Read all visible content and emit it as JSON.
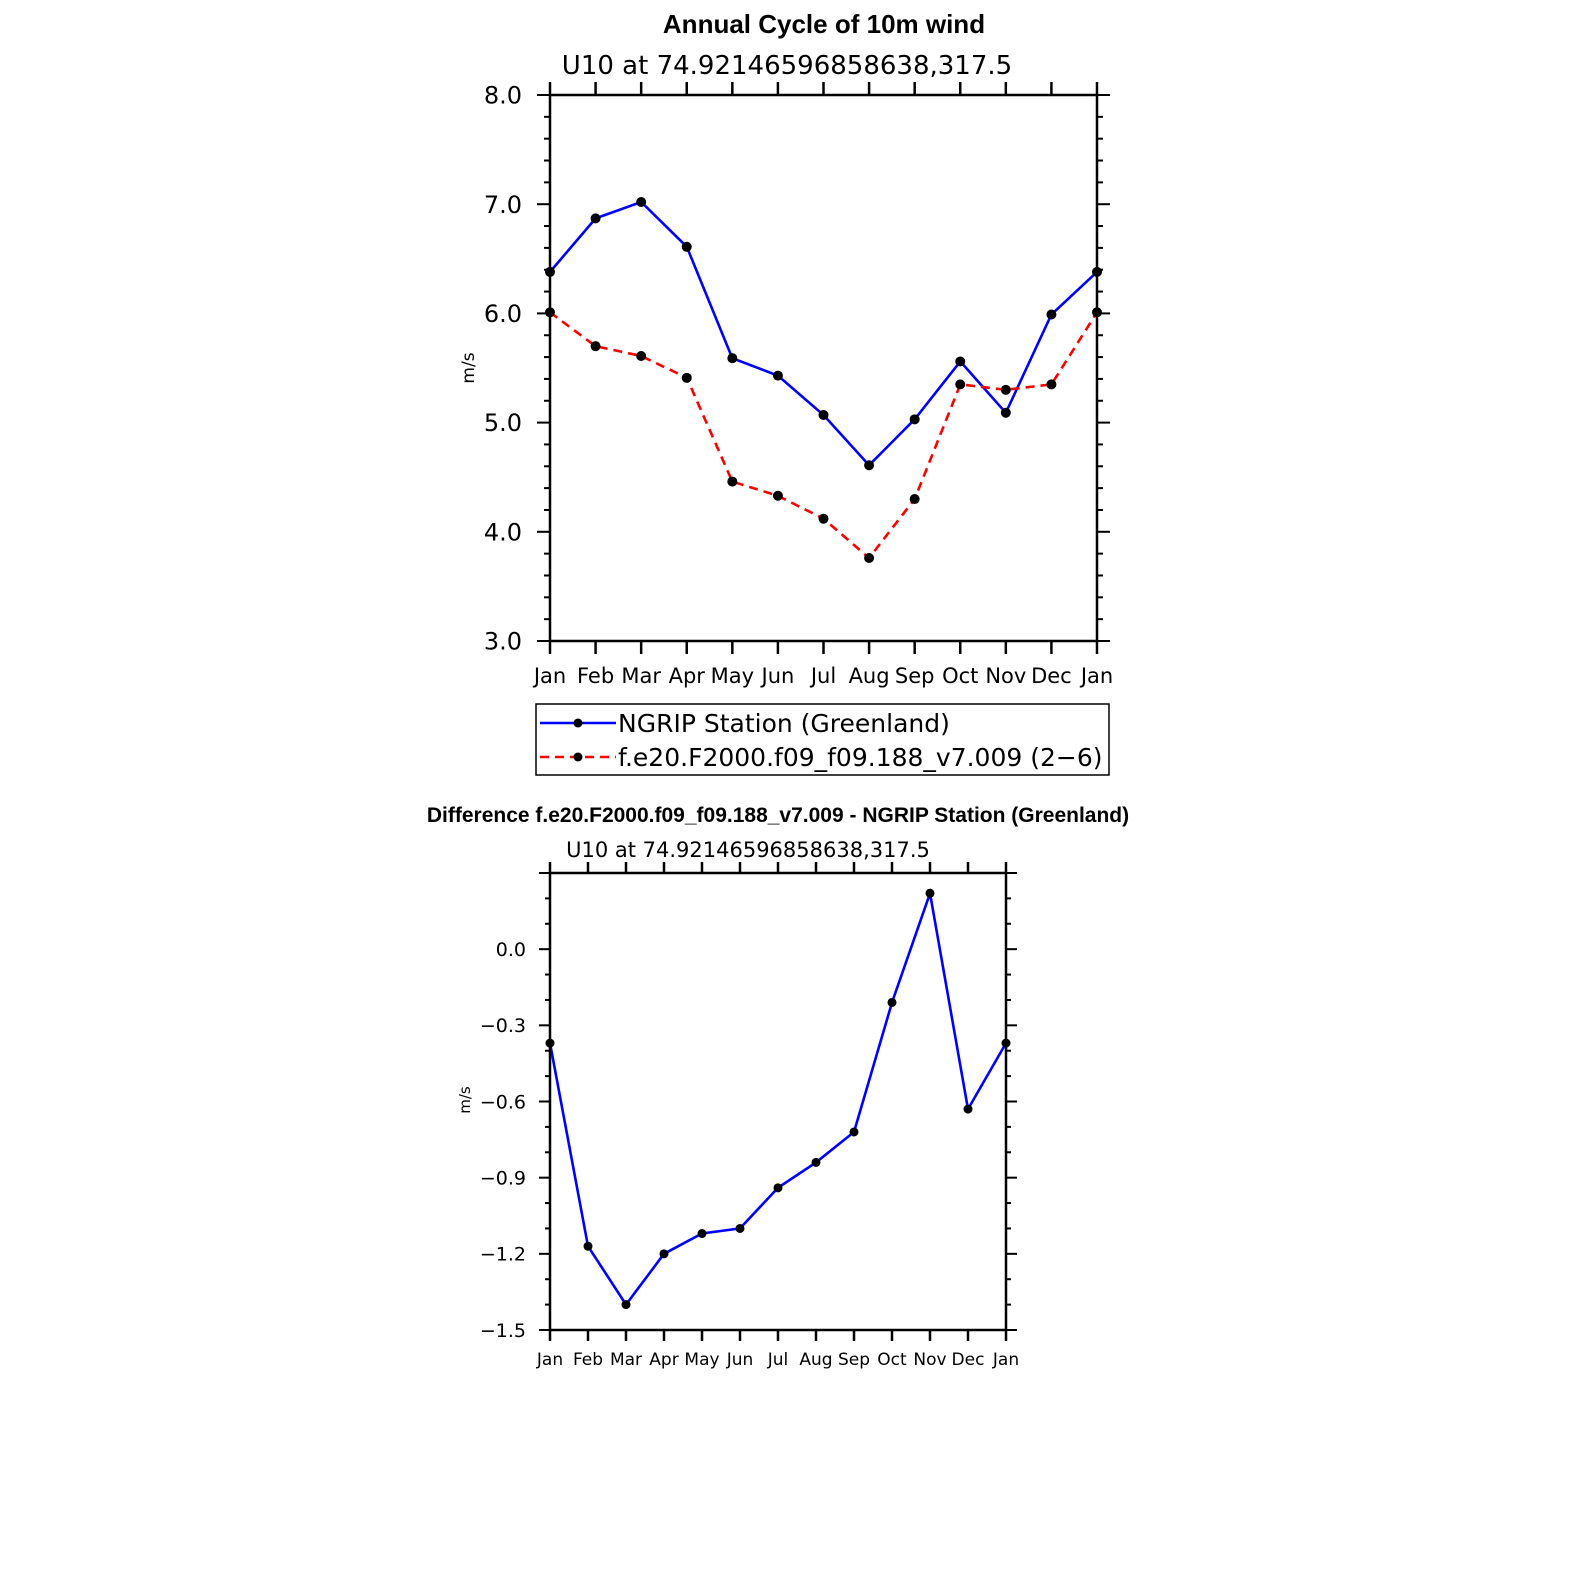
{
  "chart_data": [
    {
      "type": "line",
      "title": "Annual Cycle of 10m wind",
      "subtitle": "U10  at  74.92146596858638,317.5",
      "ylabel": "m/s",
      "xlabel": "",
      "ylim": [
        3.0,
        8.0
      ],
      "yticks": [
        "8.0",
        "7.0",
        "6.0",
        "5.0",
        "4.0",
        "3.0"
      ],
      "categories": [
        "Jan",
        "Feb",
        "Mar",
        "Apr",
        "May",
        "Jun",
        "Jul",
        "Aug",
        "Sep",
        "Oct",
        "Nov",
        "Dec",
        "Jan"
      ],
      "series": [
        {
          "name": "NGRIP Station (Greenland)",
          "color": "#0000ff",
          "dash": "solid",
          "values": [
            6.38,
            6.87,
            7.02,
            6.61,
            5.59,
            5.43,
            5.07,
            4.61,
            5.03,
            5.56,
            5.09,
            5.99,
            6.38
          ]
        },
        {
          "name": "f.e20.F2000.f09_f09.188_v7.009 (2−6)",
          "color": "#ff0000",
          "dash": "dashed",
          "values": [
            6.01,
            5.7,
            5.61,
            5.41,
            4.46,
            4.33,
            4.12,
            3.76,
            4.3,
            5.35,
            5.3,
            5.35,
            6.01
          ]
        }
      ],
      "legend_position": "bottom"
    },
    {
      "type": "line",
      "title": "Difference f.e20.F2000.f09_f09.188_v7.009 - NGRIP Station (Greenland)",
      "subtitle": "U10  at  74.92146596858638,317.5",
      "ylabel": "m/s",
      "xlabel": "",
      "ylim": [
        -1.5,
        0.3
      ],
      "yticks": [
        "0.0",
        "−0.3",
        "−0.6",
        "−0.9",
        "−1.2",
        "−1.5"
      ],
      "categories": [
        "Jan",
        "Feb",
        "Mar",
        "Apr",
        "May",
        "Jun",
        "Jul",
        "Aug",
        "Sep",
        "Oct",
        "Nov",
        "Dec",
        "Jan"
      ],
      "series": [
        {
          "name": "Difference",
          "color": "#0000ff",
          "dash": "solid",
          "values": [
            -0.37,
            -1.17,
            -1.4,
            -1.2,
            -1.12,
            -1.1,
            -0.94,
            -0.84,
            -0.72,
            -0.21,
            0.22,
            -0.63,
            -0.37
          ]
        }
      ]
    }
  ]
}
